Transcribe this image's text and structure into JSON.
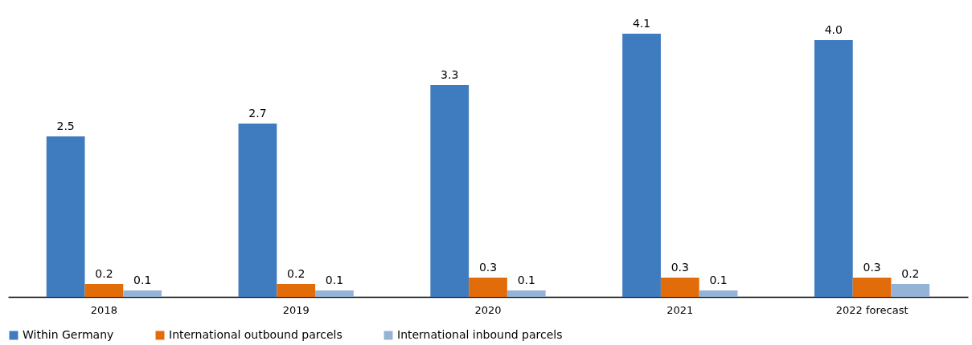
{
  "chart_data": {
    "type": "bar",
    "categories": [
      "2018",
      "2019",
      "2020",
      "2021",
      "2022 forecast"
    ],
    "series": [
      {
        "name": "Within Germany",
        "color": "#3f7bbf",
        "values": [
          2.5,
          2.7,
          3.3,
          4.1,
          4.0
        ],
        "value_labels": [
          "2.5",
          "2.7",
          "3.3",
          "4.1",
          "4.0"
        ]
      },
      {
        "name": "International outbound parcels",
        "color": "#e36c0a",
        "values": [
          0.2,
          0.2,
          0.3,
          0.3,
          0.3
        ],
        "value_labels": [
          "0.2",
          "0.2",
          "0.3",
          "0.3",
          "0.3"
        ]
      },
      {
        "name": "International inbound parcels",
        "color": "#95b3d7",
        "values": [
          0.1,
          0.1,
          0.1,
          0.1,
          0.2
        ],
        "value_labels": [
          "0.1",
          "0.1",
          "0.1",
          "0.1",
          "0.2"
        ]
      }
    ],
    "legend": "bottom",
    "grid": false,
    "tick_labels": "x"
  }
}
